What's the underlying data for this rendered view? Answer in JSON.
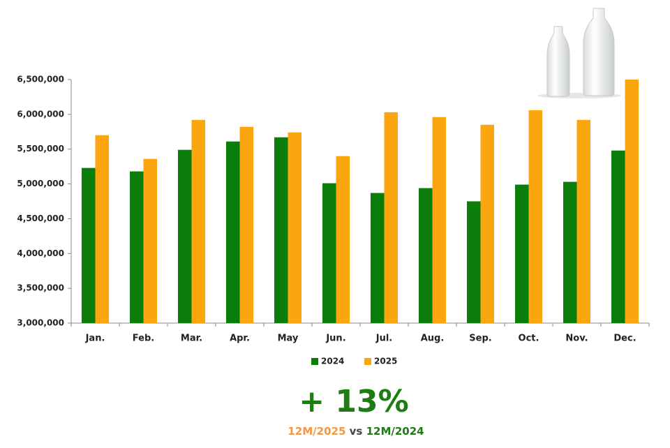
{
  "chart_data": {
    "type": "bar",
    "categories": [
      "Jan.",
      "Feb.",
      "Mar.",
      "Apr.",
      "May",
      "Jun.",
      "Jul.",
      "Aug.",
      "Sep.",
      "Oct.",
      "Nov.",
      "Dec."
    ],
    "series": [
      {
        "name": "2024",
        "color": "#0b7d0b",
        "values": [
          5230000,
          5180000,
          5490000,
          5610000,
          5670000,
          5010000,
          4870000,
          4940000,
          4750000,
          4990000,
          5030000,
          5480000
        ]
      },
      {
        "name": "2025",
        "color": "#fba60f",
        "values": [
          5700000,
          5360000,
          5920000,
          5820000,
          5740000,
          5400000,
          6030000,
          5960000,
          5850000,
          6060000,
          5920000,
          6500000
        ]
      }
    ],
    "ylim": [
      3000000,
      6500000
    ],
    "yticks": [
      {
        "value": 3000000,
        "label": "3,000,000"
      },
      {
        "value": 3500000,
        "label": "3,500,000"
      },
      {
        "value": 4000000,
        "label": "4,000,000"
      },
      {
        "value": 4500000,
        "label": "4,500,000"
      },
      {
        "value": 5000000,
        "label": "5,000,000"
      },
      {
        "value": 5500000,
        "label": "5,500,000"
      },
      {
        "value": 6000000,
        "label": "6,000,000"
      },
      {
        "value": 6500000,
        "label": "6,500,000"
      }
    ],
    "grid": false,
    "legend": "bottom",
    "annotation": {
      "headline": "+ 13%",
      "current": "12M/2025",
      "connector": "vs",
      "previous": "12M/2024"
    }
  }
}
